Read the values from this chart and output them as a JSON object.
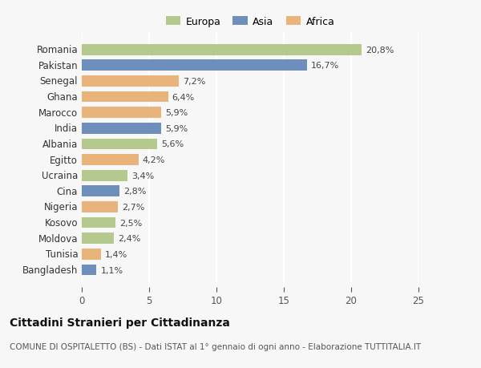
{
  "countries": [
    "Romania",
    "Pakistan",
    "Senegal",
    "Ghana",
    "Marocco",
    "India",
    "Albania",
    "Egitto",
    "Ucraina",
    "Cina",
    "Nigeria",
    "Kosovo",
    "Moldova",
    "Tunisia",
    "Bangladesh"
  ],
  "values": [
    20.8,
    16.7,
    7.2,
    6.4,
    5.9,
    5.9,
    5.6,
    4.2,
    3.4,
    2.8,
    2.7,
    2.5,
    2.4,
    1.4,
    1.1
  ],
  "continents": [
    "Europa",
    "Asia",
    "Africa",
    "Africa",
    "Africa",
    "Asia",
    "Europa",
    "Africa",
    "Europa",
    "Asia",
    "Africa",
    "Europa",
    "Europa",
    "Africa",
    "Asia"
  ],
  "continent_colors": {
    "Europa": "#b5c98e",
    "Asia": "#6e8fbc",
    "Africa": "#e8b47c"
  },
  "legend_labels": [
    "Europa",
    "Asia",
    "Africa"
  ],
  "legend_colors": [
    "#b5c98e",
    "#6e8fbc",
    "#e8b47c"
  ],
  "title": "Cittadini Stranieri per Cittadinanza",
  "subtitle": "COMUNE DI OSPITALETTO (BS) - Dati ISTAT al 1° gennaio di ogni anno - Elaborazione TUTTITALIA.IT",
  "xlim": [
    0,
    25
  ],
  "xticks": [
    0,
    5,
    10,
    15,
    20,
    25
  ],
  "background_color": "#f7f7f7",
  "bar_height": 0.7,
  "grid_color": "#ffffff",
  "value_label_fontsize": 8,
  "ytick_fontsize": 8.5,
  "xtick_fontsize": 8.5,
  "title_fontsize": 10,
  "subtitle_fontsize": 7.5
}
